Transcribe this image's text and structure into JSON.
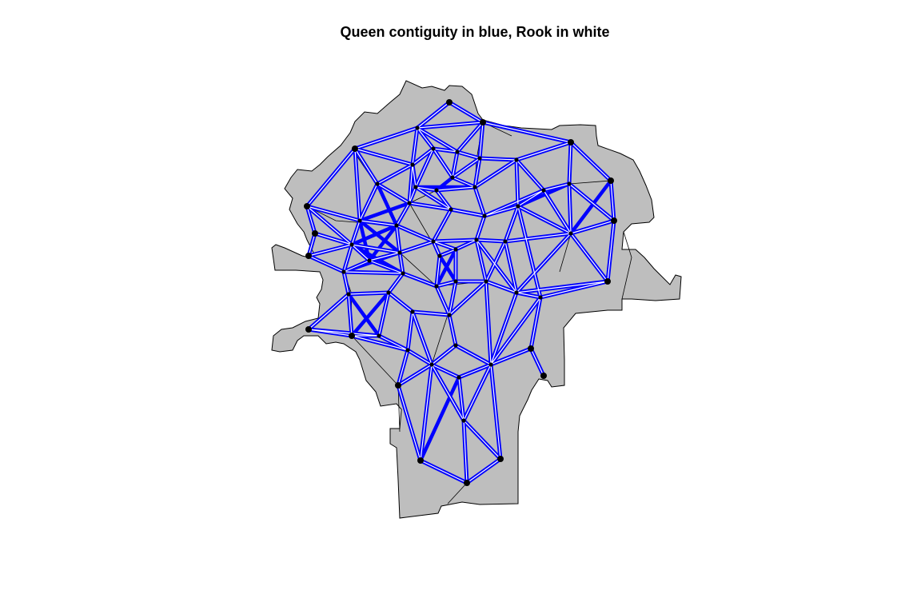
{
  "title": "Queen contiguity in blue, Rook in white",
  "colors": {
    "region_fill": "#bebebe",
    "region_border": "#000000",
    "queen_link": "#0000ff",
    "rook_link": "#ffffff",
    "centroid": "#000000"
  },
  "legend": {
    "queen": "blue",
    "rook": "white"
  }
}
